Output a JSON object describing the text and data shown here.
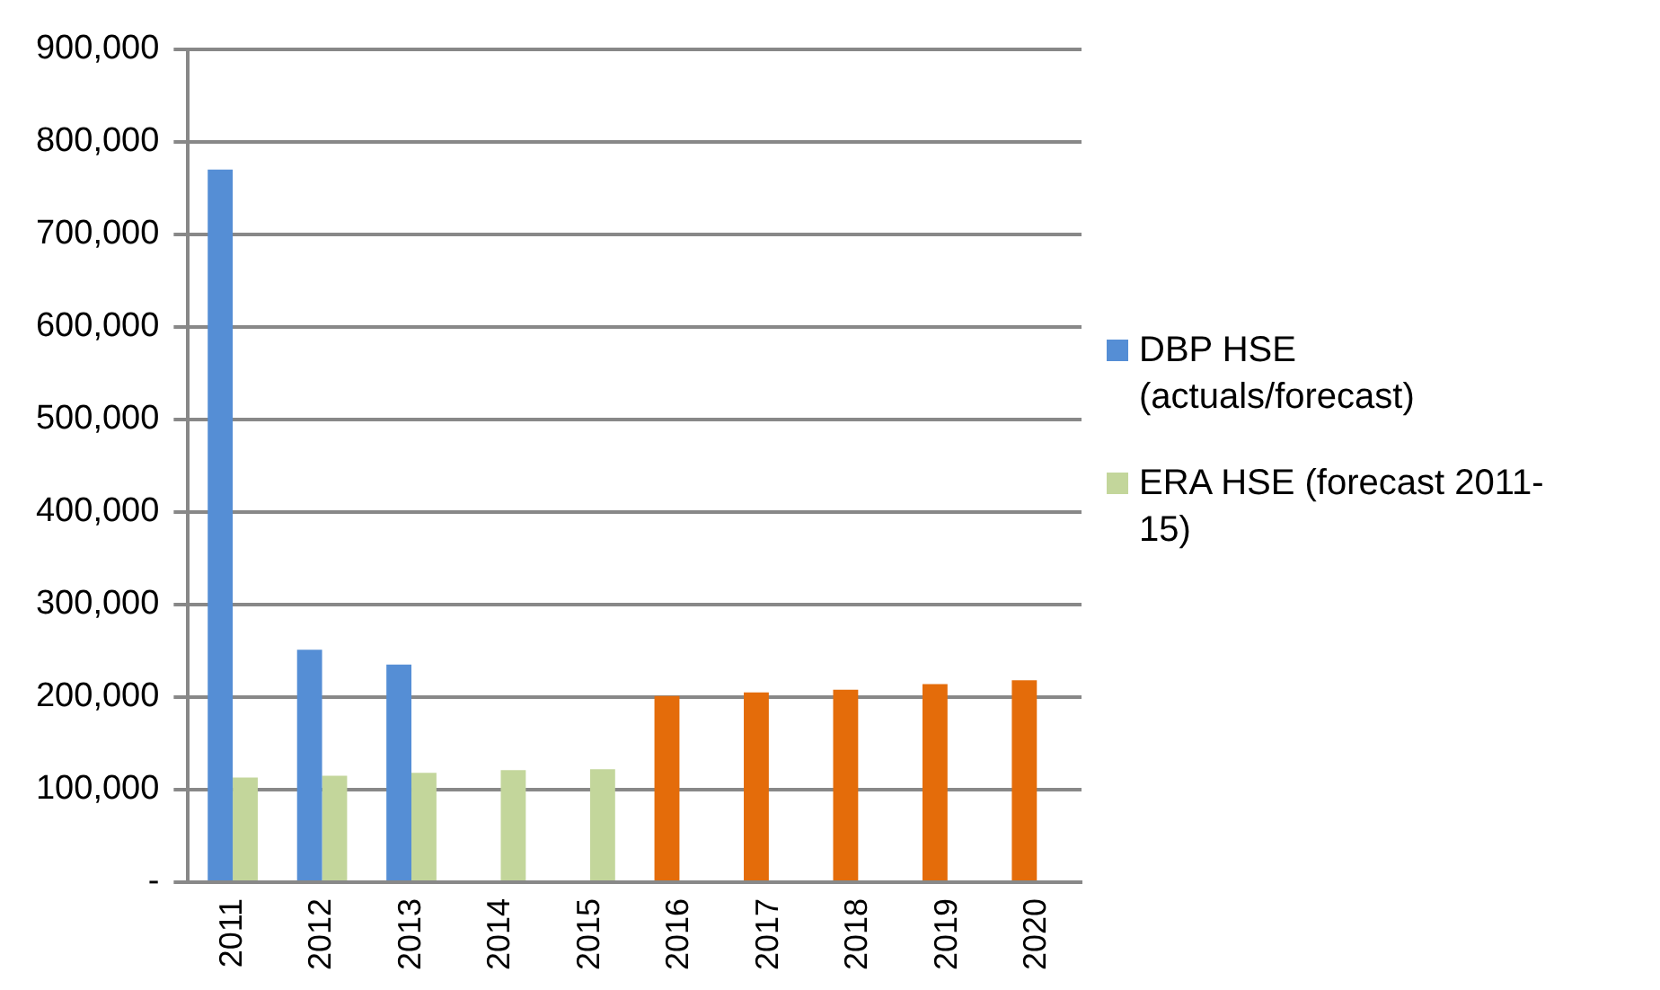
{
  "chart_data": {
    "type": "bar",
    "categories": [
      "2011",
      "2012",
      "2013",
      "2014",
      "2015",
      "2016",
      "2017",
      "2018",
      "2019",
      "2020"
    ],
    "series": [
      {
        "name": "DBP HSE (actuals/forecast)",
        "color": "#558ed5",
        "colors": [
          "#558ed5",
          "#558ed5",
          "#558ed5",
          null,
          null,
          "#e46c0a",
          "#e46c0a",
          "#e46c0a",
          "#e46c0a",
          "#e46c0a"
        ],
        "values": [
          770000,
          251000,
          235000,
          null,
          null,
          201000,
          205000,
          208000,
          214000,
          218000
        ]
      },
      {
        "name": "ERA HSE (forecast 2011-15)",
        "color": "#c3d69b",
        "values": [
          113000,
          115000,
          118000,
          121000,
          122000,
          null,
          null,
          null,
          null,
          null
        ]
      }
    ],
    "ylim": [
      0,
      900000
    ],
    "yticks": [
      {
        "value": 0,
        "label": "-"
      },
      {
        "value": 100000,
        "label": "100,000"
      },
      {
        "value": 200000,
        "label": "200,000"
      },
      {
        "value": 300000,
        "label": "300,000"
      },
      {
        "value": 400000,
        "label": "400,000"
      },
      {
        "value": 500000,
        "label": "500,000"
      },
      {
        "value": 600000,
        "label": "600,000"
      },
      {
        "value": 700000,
        "label": "700,000"
      },
      {
        "value": 800000,
        "label": "800,000"
      },
      {
        "value": 900000,
        "label": "900,000"
      }
    ],
    "grid": "y",
    "legend": "right"
  }
}
